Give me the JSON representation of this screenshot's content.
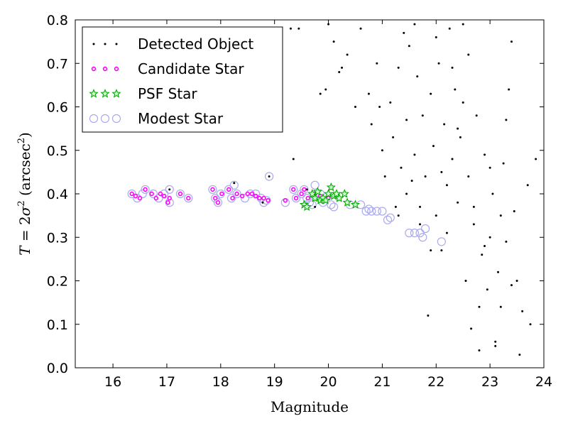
{
  "chart_data": {
    "type": "scatter",
    "xlabel": "Magnitude",
    "ylabel_parts": {
      "T": "T",
      "eq": " = 2",
      "sigma": "σ",
      "sup2": "2",
      "unit_open": " (arcsec",
      "unit_close": ")"
    },
    "xlim": [
      15.3,
      24.0
    ],
    "ylim": [
      0.0,
      0.8
    ],
    "xticks": [
      16,
      17,
      18,
      19,
      20,
      21,
      22,
      23,
      24
    ],
    "yticks": [
      0.0,
      0.1,
      0.2,
      0.3,
      0.4,
      0.5,
      0.6,
      0.7,
      0.8
    ],
    "legend_position": "top-left",
    "colors": {
      "detected": "#000000",
      "candidate": "#ff00ff",
      "psf": "#00aa00",
      "modest": "#aaaaee"
    },
    "legend": [
      {
        "key": "detected",
        "label": "Detected Object"
      },
      {
        "key": "candidate",
        "label": "Candidate Star"
      },
      {
        "key": "psf",
        "label": "PSF Star"
      },
      {
        "key": "modest",
        "label": "Modest Star"
      }
    ],
    "series": {
      "modest_star": [
        [
          16.35,
          0.4
        ],
        [
          16.45,
          0.39
        ],
        [
          16.55,
          0.4
        ],
        [
          16.6,
          0.41
        ],
        [
          16.75,
          0.4
        ],
        [
          16.85,
          0.39
        ],
        [
          16.95,
          0.4
        ],
        [
          17.05,
          0.38
        ],
        [
          17.05,
          0.41
        ],
        [
          17.25,
          0.4
        ],
        [
          17.4,
          0.39
        ],
        [
          17.85,
          0.41
        ],
        [
          17.9,
          0.39
        ],
        [
          17.95,
          0.38
        ],
        [
          18.0,
          0.4
        ],
        [
          18.15,
          0.41
        ],
        [
          18.2,
          0.39
        ],
        [
          18.25,
          0.42
        ],
        [
          18.3,
          0.4
        ],
        [
          18.45,
          0.39
        ],
        [
          18.55,
          0.4
        ],
        [
          18.65,
          0.4
        ],
        [
          18.75,
          0.39
        ],
        [
          18.8,
          0.38
        ],
        [
          18.85,
          0.385
        ],
        [
          18.9,
          0.44
        ],
        [
          19.2,
          0.38
        ],
        [
          19.35,
          0.41
        ],
        [
          19.4,
          0.39
        ],
        [
          19.5,
          0.4
        ],
        [
          19.55,
          0.41
        ],
        [
          19.6,
          0.39
        ],
        [
          19.65,
          0.38
        ],
        [
          19.7,
          0.375
        ],
        [
          19.75,
          0.42
        ],
        [
          19.85,
          0.4
        ],
        [
          19.9,
          0.38
        ],
        [
          20.05,
          0.375
        ],
        [
          20.1,
          0.37
        ],
        [
          20.4,
          0.375
        ],
        [
          20.6,
          0.375
        ],
        [
          20.7,
          0.36
        ],
        [
          20.75,
          0.365
        ],
        [
          20.8,
          0.36
        ],
        [
          20.9,
          0.36
        ],
        [
          21.0,
          0.36
        ],
        [
          21.1,
          0.34
        ],
        [
          21.15,
          0.345
        ],
        [
          21.5,
          0.31
        ],
        [
          21.6,
          0.31
        ],
        [
          21.7,
          0.31
        ],
        [
          21.75,
          0.3
        ],
        [
          21.8,
          0.32
        ],
        [
          22.1,
          0.29
        ]
      ],
      "candidate_star": [
        [
          16.35,
          0.4
        ],
        [
          16.42,
          0.395
        ],
        [
          16.5,
          0.39
        ],
        [
          16.6,
          0.41
        ],
        [
          16.72,
          0.4
        ],
        [
          16.8,
          0.39
        ],
        [
          16.88,
          0.4
        ],
        [
          16.95,
          0.395
        ],
        [
          17.02,
          0.38
        ],
        [
          17.05,
          0.39
        ],
        [
          17.25,
          0.4
        ],
        [
          17.4,
          0.39
        ],
        [
          17.85,
          0.41
        ],
        [
          17.9,
          0.39
        ],
        [
          17.95,
          0.38
        ],
        [
          18.02,
          0.4
        ],
        [
          18.15,
          0.41
        ],
        [
          18.22,
          0.39
        ],
        [
          18.3,
          0.4
        ],
        [
          18.4,
          0.395
        ],
        [
          18.5,
          0.4
        ],
        [
          18.58,
          0.4
        ],
        [
          18.65,
          0.395
        ],
        [
          18.72,
          0.39
        ],
        [
          18.8,
          0.39
        ],
        [
          18.88,
          0.385
        ],
        [
          19.2,
          0.385
        ],
        [
          19.35,
          0.41
        ],
        [
          19.4,
          0.39
        ],
        [
          19.5,
          0.4
        ],
        [
          19.55,
          0.41
        ],
        [
          19.62,
          0.39
        ],
        [
          19.75,
          0.4
        ],
        [
          19.85,
          0.395
        ],
        [
          20.0,
          0.39
        ]
      ],
      "psf_star": [
        [
          19.55,
          0.375
        ],
        [
          19.6,
          0.37
        ],
        [
          19.7,
          0.4
        ],
        [
          19.75,
          0.39
        ],
        [
          19.8,
          0.405
        ],
        [
          19.85,
          0.385
        ],
        [
          19.9,
          0.39
        ],
        [
          19.95,
          0.385
        ],
        [
          20.0,
          0.4
        ],
        [
          20.05,
          0.415
        ],
        [
          20.1,
          0.395
        ],
        [
          20.15,
          0.4
        ],
        [
          20.2,
          0.39
        ],
        [
          20.3,
          0.4
        ],
        [
          20.35,
          0.38
        ],
        [
          20.5,
          0.375
        ]
      ],
      "detected_object": [
        [
          17.05,
          0.41
        ],
        [
          18.25,
          0.425
        ],
        [
          18.78,
          0.38
        ],
        [
          18.9,
          0.44
        ],
        [
          19.3,
          0.78
        ],
        [
          19.35,
          0.48
        ],
        [
          19.45,
          0.78
        ],
        [
          19.6,
          0.41
        ],
        [
          19.75,
          0.37
        ],
        [
          19.85,
          0.63
        ],
        [
          19.95,
          0.64
        ],
        [
          20.0,
          0.79
        ],
        [
          20.1,
          0.75
        ],
        [
          20.2,
          0.68
        ],
        [
          20.25,
          0.69
        ],
        [
          20.35,
          0.72
        ],
        [
          20.5,
          0.6
        ],
        [
          20.6,
          0.78
        ],
        [
          20.75,
          0.63
        ],
        [
          20.8,
          0.56
        ],
        [
          20.9,
          0.7
        ],
        [
          20.95,
          0.6
        ],
        [
          21.0,
          0.5
        ],
        [
          21.05,
          0.44
        ],
        [
          21.15,
          0.61
        ],
        [
          21.2,
          0.53
        ],
        [
          21.25,
          0.37
        ],
        [
          21.3,
          0.69
        ],
        [
          21.35,
          0.46
        ],
        [
          21.4,
          0.77
        ],
        [
          21.45,
          0.57
        ],
        [
          21.5,
          0.74
        ],
        [
          21.55,
          0.43
        ],
        [
          21.6,
          0.49
        ],
        [
          21.65,
          0.67
        ],
        [
          21.7,
          0.37
        ],
        [
          21.75,
          0.58
        ],
        [
          21.8,
          0.44
        ],
        [
          21.85,
          0.12
        ],
        [
          21.9,
          0.63
        ],
        [
          21.95,
          0.51
        ],
        [
          22.0,
          0.35
        ],
        [
          22.05,
          0.7
        ],
        [
          22.1,
          0.27
        ],
        [
          22.15,
          0.56
        ],
        [
          22.2,
          0.42
        ],
        [
          22.25,
          0.78
        ],
        [
          22.3,
          0.48
        ],
        [
          22.35,
          0.64
        ],
        [
          22.4,
          0.38
        ],
        [
          22.45,
          0.53
        ],
        [
          22.5,
          0.61
        ],
        [
          22.55,
          0.2
        ],
        [
          22.6,
          0.44
        ],
        [
          22.65,
          0.09
        ],
        [
          22.7,
          0.33
        ],
        [
          22.75,
          0.58
        ],
        [
          22.8,
          0.04
        ],
        [
          22.85,
          0.26
        ],
        [
          22.9,
          0.49
        ],
        [
          22.95,
          0.18
        ],
        [
          23.0,
          0.3
        ],
        [
          23.05,
          0.4
        ],
        [
          23.1,
          0.06
        ],
        [
          23.15,
          0.22
        ],
        [
          23.2,
          0.35
        ],
        [
          23.25,
          0.47
        ],
        [
          23.3,
          0.29
        ],
        [
          23.35,
          0.64
        ],
        [
          23.4,
          0.19
        ],
        [
          23.45,
          0.36
        ],
        [
          23.5,
          0.2
        ],
        [
          23.55,
          0.03
        ],
        [
          23.6,
          0.13
        ],
        [
          23.7,
          0.42
        ],
        [
          23.75,
          0.1
        ],
        [
          23.85,
          0.48
        ],
        [
          22.6,
          0.72
        ],
        [
          22.3,
          0.69
        ],
        [
          21.9,
          0.27
        ],
        [
          22.1,
          0.45
        ],
        [
          22.4,
          0.55
        ],
        [
          22.7,
          0.37
        ],
        [
          23.0,
          0.46
        ],
        [
          23.2,
          0.14
        ],
        [
          21.6,
          0.79
        ],
        [
          22.0,
          0.76
        ],
        [
          22.5,
          0.79
        ],
        [
          23.4,
          0.75
        ],
        [
          21.3,
          0.35
        ],
        [
          21.45,
          0.4
        ],
        [
          21.7,
          0.33
        ],
        [
          22.2,
          0.31
        ],
        [
          22.9,
          0.28
        ],
        [
          23.1,
          0.05
        ],
        [
          23.3,
          0.57
        ],
        [
          22.8,
          0.14
        ]
      ]
    }
  }
}
